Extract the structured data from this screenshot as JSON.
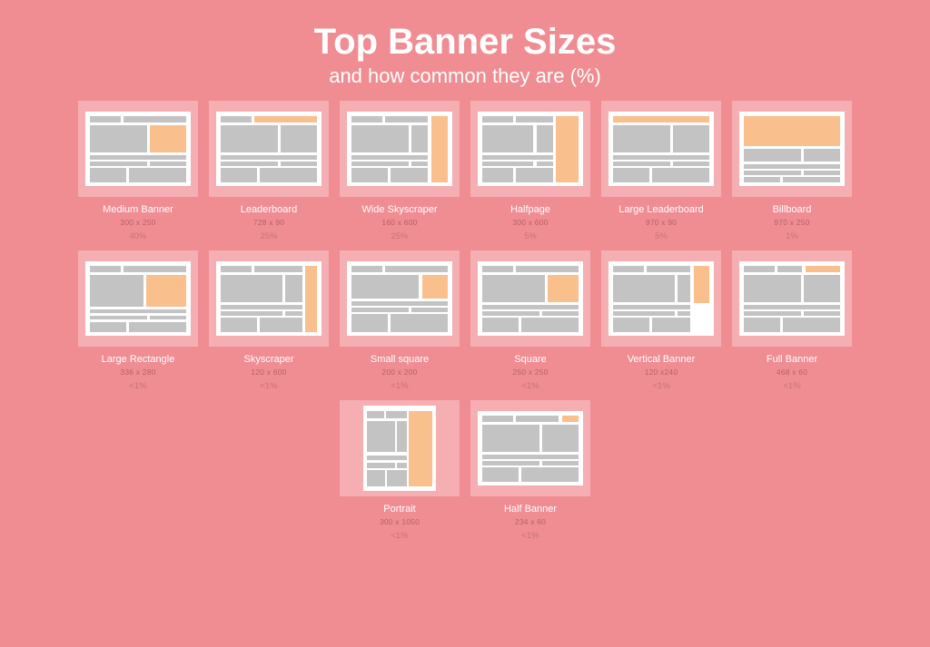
{
  "colors": {
    "page_bg": "#ef8d93",
    "tile_bg": "#f5aeb2",
    "thumb_bg": "#ffffff",
    "content_block": "#c3c3c3",
    "ad_block": "#f9bf8d",
    "title_color": "#ffffff",
    "dims_color": "#b76267",
    "percent_color": "#c77479"
  },
  "header": {
    "title": "Top Banner Sizes",
    "subtitle": "and how common they are (%)"
  },
  "banners": [
    {
      "name": "Medium Banner",
      "dims": "300 x 250",
      "percent": "40%",
      "layout": "medium_banner"
    },
    {
      "name": "Leaderboard",
      "dims": "728 x 90",
      "percent": "25%",
      "layout": "leaderboard"
    },
    {
      "name": "Wide Skyscraper",
      "dims": "160 x 600",
      "percent": "25%",
      "layout": "wide_skyscraper"
    },
    {
      "name": "Halfpage",
      "dims": "300 x 600",
      "percent": "5%",
      "layout": "halfpage"
    },
    {
      "name": "Large Leaderboard",
      "dims": "970 x 90",
      "percent": "5%",
      "layout": "large_leaderboard"
    },
    {
      "name": "Billboard",
      "dims": "970 x 250",
      "percent": "1%",
      "layout": "billboard"
    },
    {
      "name": "Large Rectangle",
      "dims": "336 x 280",
      "percent": "<1%",
      "layout": "large_rectangle"
    },
    {
      "name": "Skyscraper",
      "dims": "120 x 600",
      "percent": "<1%",
      "layout": "skyscraper"
    },
    {
      "name": "Small square",
      "dims": "200 x 200",
      "percent": "<1%",
      "layout": "small_square"
    },
    {
      "name": "Square",
      "dims": "250 x 250",
      "percent": "<1%",
      "layout": "square"
    },
    {
      "name": "Vertical Banner",
      "dims": "120 x240",
      "percent": "<1%",
      "layout": "vertical_banner"
    },
    {
      "name": "Full Banner",
      "dims": "468 x 60",
      "percent": "<1%",
      "layout": "full_banner"
    },
    {
      "name": "Portrait",
      "dims": "300 x 1050",
      "percent": "<1%",
      "layout": "portrait"
    },
    {
      "name": "Half Banner",
      "dims": "234 x 60",
      "percent": "<1%",
      "layout": "half_banner"
    }
  ],
  "layout_key": {
    "notes": "blocks are [left%, top%, width%, height%] inside the 112x78 white thumb; 'ad' entries are the orange highlighted banner shape",
    "medium_banner": {
      "blocks": [
        [
          3,
          4,
          30,
          9
        ],
        [
          36,
          4,
          61,
          9
        ],
        [
          3,
          17,
          56,
          38
        ],
        [
          3,
          59,
          94,
          6
        ],
        [
          3,
          68,
          56,
          6
        ],
        [
          62,
          68,
          35,
          6
        ],
        [
          3,
          77,
          35,
          20
        ],
        [
          41,
          77,
          56,
          20
        ]
      ],
      "ad": [
        [
          62,
          17,
          35,
          38
        ]
      ]
    },
    "leaderboard": {
      "blocks": [
        [
          3,
          4,
          30,
          9
        ],
        [
          3,
          17,
          56,
          38
        ],
        [
          62,
          17,
          35,
          38
        ],
        [
          3,
          59,
          94,
          6
        ],
        [
          3,
          68,
          56,
          6
        ],
        [
          62,
          68,
          35,
          6
        ],
        [
          3,
          77,
          35,
          20
        ],
        [
          41,
          77,
          56,
          20
        ]
      ],
      "ad": [
        [
          36,
          4,
          61,
          9
        ]
      ]
    },
    "wide_skyscraper": {
      "blocks": [
        [
          3,
          4,
          30,
          9
        ],
        [
          36,
          4,
          42,
          9
        ],
        [
          3,
          17,
          56,
          38
        ],
        [
          62,
          17,
          16,
          38
        ],
        [
          3,
          59,
          75,
          6
        ],
        [
          3,
          68,
          56,
          6
        ],
        [
          62,
          68,
          16,
          6
        ],
        [
          3,
          77,
          35,
          20
        ],
        [
          41,
          77,
          37,
          20
        ]
      ],
      "ad": [
        [
          81,
          4,
          16,
          93
        ]
      ]
    },
    "halfpage": {
      "blocks": [
        [
          3,
          4,
          30,
          9
        ],
        [
          36,
          4,
          36,
          9
        ],
        [
          3,
          17,
          50,
          38
        ],
        [
          56,
          17,
          16,
          38
        ],
        [
          3,
          59,
          69,
          6
        ],
        [
          3,
          68,
          50,
          6
        ],
        [
          56,
          68,
          16,
          6
        ],
        [
          3,
          77,
          30,
          20
        ],
        [
          36,
          77,
          36,
          20
        ]
      ],
      "ad": [
        [
          75,
          4,
          22,
          93
        ]
      ]
    },
    "large_leaderboard": {
      "blocks": [
        [
          3,
          17,
          56,
          38
        ],
        [
          62,
          17,
          35,
          38
        ],
        [
          3,
          59,
          94,
          6
        ],
        [
          3,
          68,
          56,
          6
        ],
        [
          62,
          68,
          35,
          6
        ],
        [
          3,
          77,
          35,
          20
        ],
        [
          41,
          77,
          56,
          20
        ]
      ],
      "ad": [
        [
          3,
          4,
          94,
          9
        ]
      ]
    },
    "billboard": {
      "blocks": [
        [
          3,
          50,
          56,
          18
        ],
        [
          62,
          50,
          35,
          18
        ],
        [
          3,
          72,
          94,
          6
        ],
        [
          3,
          81,
          56,
          6
        ],
        [
          62,
          81,
          35,
          6
        ],
        [
          3,
          90,
          35,
          8
        ],
        [
          41,
          90,
          56,
          8
        ]
      ],
      "ad": [
        [
          3,
          4,
          94,
          42
        ]
      ]
    },
    "large_rectangle": {
      "blocks": [
        [
          3,
          4,
          30,
          9
        ],
        [
          36,
          4,
          61,
          9
        ],
        [
          3,
          17,
          52,
          44
        ],
        [
          3,
          65,
          94,
          6
        ],
        [
          3,
          74,
          56,
          6
        ],
        [
          62,
          74,
          35,
          6
        ],
        [
          3,
          83,
          35,
          14
        ],
        [
          41,
          83,
          56,
          14
        ]
      ],
      "ad": [
        [
          58,
          17,
          39,
          44
        ]
      ]
    },
    "skyscraper": {
      "blocks": [
        [
          3,
          4,
          30,
          9
        ],
        [
          36,
          4,
          47,
          9
        ],
        [
          3,
          17,
          60,
          38
        ],
        [
          66,
          17,
          17,
          38
        ],
        [
          3,
          59,
          80,
          6
        ],
        [
          3,
          68,
          60,
          6
        ],
        [
          66,
          68,
          17,
          6
        ],
        [
          3,
          77,
          35,
          20
        ],
        [
          41,
          77,
          42,
          20
        ]
      ],
      "ad": [
        [
          86,
          4,
          11,
          93
        ]
      ]
    },
    "small_square": {
      "blocks": [
        [
          3,
          4,
          30,
          9
        ],
        [
          36,
          4,
          61,
          9
        ],
        [
          3,
          17,
          66,
          33
        ],
        [
          3,
          54,
          94,
          6
        ],
        [
          3,
          63,
          56,
          6
        ],
        [
          62,
          63,
          35,
          6
        ],
        [
          3,
          72,
          35,
          25
        ],
        [
          41,
          72,
          56,
          25
        ]
      ],
      "ad": [
        [
          72,
          17,
          25,
          33
        ]
      ]
    },
    "square": {
      "blocks": [
        [
          3,
          4,
          30,
          9
        ],
        [
          36,
          4,
          61,
          9
        ],
        [
          3,
          17,
          61,
          38
        ],
        [
          3,
          59,
          94,
          6
        ],
        [
          3,
          68,
          56,
          6
        ],
        [
          62,
          68,
          35,
          6
        ],
        [
          3,
          77,
          35,
          20
        ],
        [
          41,
          77,
          56,
          20
        ]
      ],
      "ad": [
        [
          67,
          17,
          30,
          38
        ]
      ]
    },
    "vertical_banner": {
      "blocks": [
        [
          3,
          4,
          30,
          9
        ],
        [
          36,
          4,
          43,
          9
        ],
        [
          3,
          17,
          60,
          38
        ],
        [
          66,
          17,
          13,
          38
        ],
        [
          3,
          59,
          76,
          6
        ],
        [
          3,
          68,
          60,
          6
        ],
        [
          66,
          68,
          13,
          6
        ],
        [
          3,
          77,
          35,
          20
        ],
        [
          41,
          77,
          38,
          20
        ]
      ],
      "ad": [
        [
          82,
          4,
          15,
          53
        ]
      ]
    },
    "full_banner": {
      "blocks": [
        [
          3,
          4,
          30,
          9
        ],
        [
          36,
          4,
          24,
          9
        ],
        [
          3,
          17,
          56,
          38
        ],
        [
          62,
          17,
          35,
          38
        ],
        [
          3,
          59,
          94,
          6
        ],
        [
          3,
          68,
          56,
          6
        ],
        [
          62,
          68,
          35,
          6
        ],
        [
          3,
          77,
          35,
          20
        ],
        [
          41,
          77,
          56,
          20
        ]
      ],
      "ad": [
        [
          63,
          4,
          34,
          9
        ]
      ]
    },
    "portrait": {
      "blocks": [
        [
          3,
          4,
          24,
          9
        ],
        [
          30,
          4,
          30,
          9
        ],
        [
          3,
          17,
          40,
          38
        ],
        [
          46,
          17,
          14,
          38
        ],
        [
          3,
          59,
          57,
          6
        ],
        [
          3,
          68,
          40,
          6
        ],
        [
          46,
          68,
          14,
          6
        ],
        [
          3,
          77,
          26,
          20
        ],
        [
          32,
          77,
          28,
          20
        ]
      ],
      "ad": [
        [
          63,
          4,
          34,
          93
        ]
      ],
      "thumb_w": 80
    },
    "half_banner": {
      "blocks": [
        [
          3,
          4,
          30,
          9
        ],
        [
          36,
          4,
          42,
          9
        ],
        [
          3,
          17,
          56,
          38
        ],
        [
          62,
          17,
          35,
          38
        ],
        [
          3,
          59,
          94,
          6
        ],
        [
          3,
          68,
          56,
          6
        ],
        [
          62,
          68,
          35,
          6
        ],
        [
          3,
          77,
          35,
          20
        ],
        [
          41,
          77,
          56,
          20
        ]
      ],
      "ad": [
        [
          81,
          4,
          16,
          9
        ]
      ]
    }
  }
}
